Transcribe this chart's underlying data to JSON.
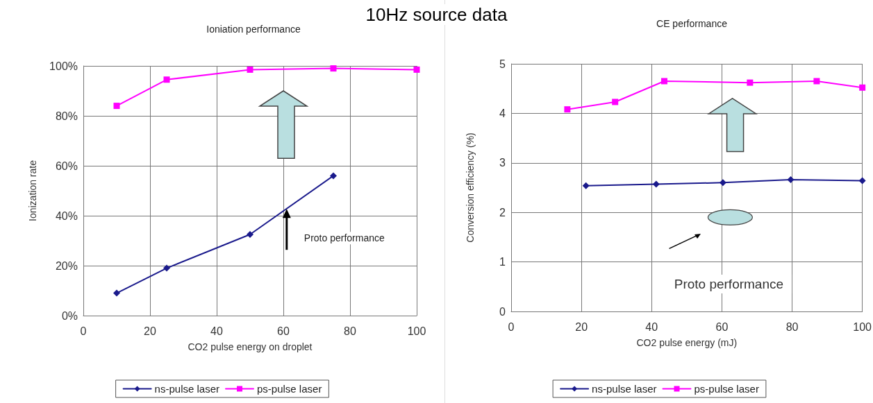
{
  "chart_data": [
    {
      "type": "line",
      "title": "Ioniation performance",
      "xlabel": "CO2 pulse energy on droplet",
      "ylabel": "Ionization rate",
      "annotations": [
        "10Hz source data",
        "Proto performance"
      ],
      "series": [
        {
          "name": "ns-pulse laser",
          "color": "#1a1a8c",
          "marker": "diamond",
          "x": [
            10,
            25,
            50,
            75
          ],
          "values": [
            9,
            19,
            32.5,
            56
          ]
        },
        {
          "name": "ps-pulse laser",
          "color": "#ff00ff",
          "marker": "square",
          "x": [
            10,
            25,
            50,
            75,
            100
          ],
          "values": [
            84,
            94.5,
            98.5,
            99,
            98.5
          ]
        }
      ],
      "xlim": [
        0,
        100
      ],
      "xticks": [
        0,
        20,
        40,
        60,
        80,
        100
      ],
      "ylim": [
        0,
        100
      ],
      "yticks": [
        {
          "value": 0,
          "label": "0%"
        },
        {
          "value": 20,
          "label": "20%"
        },
        {
          "value": 40,
          "label": "40%"
        },
        {
          "value": 60,
          "label": "60%"
        },
        {
          "value": 80,
          "label": "80%"
        },
        {
          "value": 100,
          "label": "100%"
        }
      ],
      "grid": true,
      "legend": "bottom",
      "line_style": "solid"
    },
    {
      "type": "line",
      "title": "CE performance",
      "xlabel": "CO2 pulse energy (mJ)",
      "ylabel": "Conversion efficiency (%)",
      "annotations": [
        "Proto performance"
      ],
      "series": [
        {
          "name": "ns-pulse laser",
          "color": "#1a1a8c",
          "marker": "diamond",
          "x": [
            21.3,
            41.3,
            60.3,
            79.6,
            100
          ],
          "values": [
            2.54,
            2.57,
            2.6,
            2.66,
            2.64
          ]
        },
        {
          "name": "ps-pulse laser",
          "color": "#ff00ff",
          "marker": "square",
          "x": [
            16,
            29.6,
            43.6,
            68,
            87,
            100
          ],
          "values": [
            4.08,
            4.23,
            4.65,
            4.62,
            4.65,
            4.52
          ]
        }
      ],
      "xlim": [
        0,
        100
      ],
      "xticks": [
        0,
        20,
        40,
        60,
        80,
        100
      ],
      "ylim": [
        0,
        5
      ],
      "yticks": [
        0,
        1,
        2,
        3,
        4,
        5
      ],
      "grid": true,
      "legend": "bottom",
      "line_style": "solid"
    }
  ]
}
